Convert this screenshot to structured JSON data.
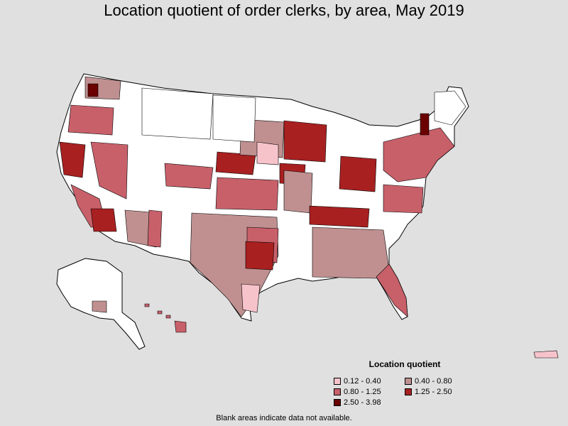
{
  "title": "Location quotient of order clerks, by area, May 2019",
  "legend": {
    "title": "Location quotient",
    "items": [
      {
        "label": "0.12 - 0.40",
        "color": "#f7c3cb"
      },
      {
        "label": "0.40 - 0.80",
        "color": "#c09090"
      },
      {
        "label": "0.80 - 1.25",
        "color": "#c8606a"
      },
      {
        "label": "1.25 - 2.50",
        "color": "#a82020"
      },
      {
        "label": "2.50 - 3.98",
        "color": "#6a0000"
      }
    ]
  },
  "footnote": "Blank areas indicate data not available.",
  "colors": {
    "background": "#e0e0e0",
    "blank": "#ffffff",
    "border": "#000000"
  }
}
